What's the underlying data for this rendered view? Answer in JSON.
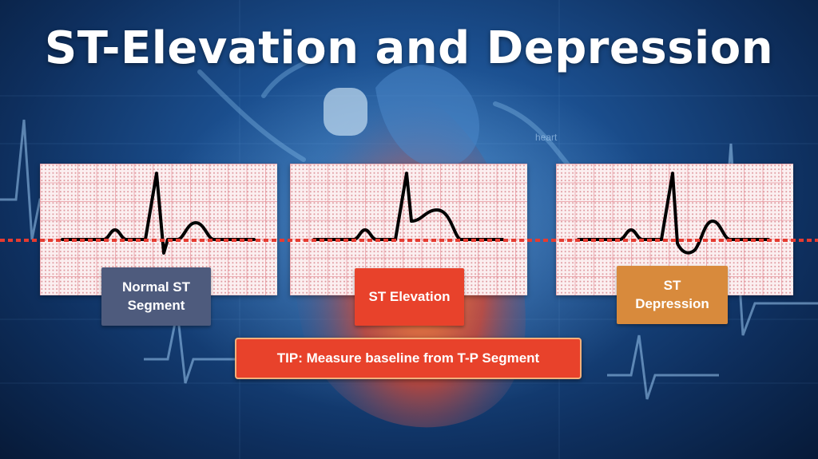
{
  "slide": {
    "title": "ST-Elevation and Depression",
    "background_text": "heart"
  },
  "panels": [
    {
      "label": "Normal ST\nSegment",
      "label_color": "#4e5b7d"
    },
    {
      "label": "ST Elevation",
      "label_color": "#e8422b"
    },
    {
      "label": "ST\nDepression",
      "label_color": "#d88a3c"
    }
  ],
  "tip": {
    "text": "TIP:  Measure baseline from T-P Segment"
  },
  "colors": {
    "baseline": "#e63b30",
    "trace": "#000000",
    "tip_border": "#f3b07a"
  }
}
